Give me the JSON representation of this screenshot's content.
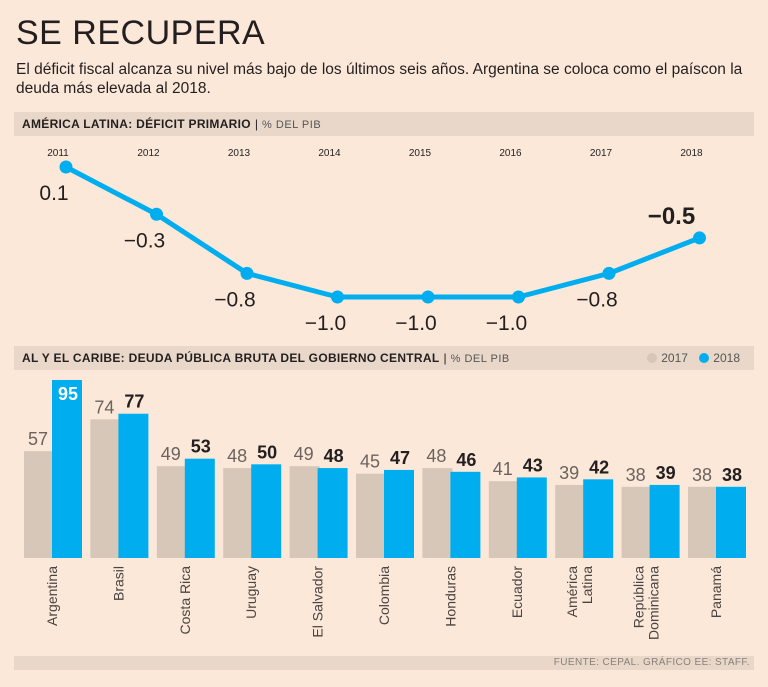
{
  "title": "SE RECUPERA",
  "subtitle": "El déficit fiscal alcanza su nivel más bajo de los últimos seis años. Argentina se coloca como el paíscon la deuda más elevada al 2018.",
  "colors": {
    "accent": "#00aeef",
    "gray": "#d6c7b8",
    "background": "#fbe8d9",
    "header": "#e9d8c9"
  },
  "chart_data": [
    {
      "type": "line",
      "title": "AMÉRICA LATINA: DÉFICIT PRIMARIO",
      "unit": "% DEL PIB",
      "x": [
        "2011",
        "2012",
        "2013",
        "2014",
        "2015",
        "2016",
        "2017",
        "2018"
      ],
      "values": [
        0.1,
        -0.3,
        -0.8,
        -1.0,
        -1.0,
        -1.0,
        -0.8,
        -0.5
      ],
      "labels": [
        "0.1",
        "−0.3",
        "−0.8",
        "−1.0",
        "−1.0",
        "−1.0",
        "−0.8",
        "−0.5"
      ],
      "ylim": [
        -1.0,
        0.1
      ]
    },
    {
      "type": "bar",
      "title": "AL Y EL CARIBE: DEUDA PÚBLICA BRUTA DEL GOBIERNO CENTRAL",
      "unit": "% DEL PIB",
      "categories": [
        "Argentina",
        "Brasil",
        "Costa Rica",
        "Uruguay",
        "El Salvador",
        "Colombia",
        "Honduras",
        "Ecuador",
        "América Latina",
        "República Dominicana",
        "Panamá"
      ],
      "category_lines": [
        [
          "Argentina"
        ],
        [
          "Brasil"
        ],
        [
          "Costa Rica"
        ],
        [
          "Uruguay"
        ],
        [
          "El Salvador"
        ],
        [
          "Colombia"
        ],
        [
          "Honduras"
        ],
        [
          "Ecuador"
        ],
        [
          "América",
          "Latina"
        ],
        [
          "República",
          "Dominicana"
        ],
        [
          "Panamá"
        ]
      ],
      "series": [
        {
          "name": "2017",
          "values": [
            57,
            74,
            49,
            48,
            49,
            45,
            48,
            41,
            39,
            38,
            38
          ]
        },
        {
          "name": "2018",
          "values": [
            95,
            77,
            53,
            50,
            48,
            47,
            46,
            43,
            42,
            39,
            38
          ]
        }
      ],
      "ylim": [
        0,
        95
      ]
    }
  ],
  "legend": {
    "label_2017": "2017",
    "label_2018": "2018"
  },
  "footer": "FUENTE: CEPAL. GRÁFICO EE: STAFF."
}
